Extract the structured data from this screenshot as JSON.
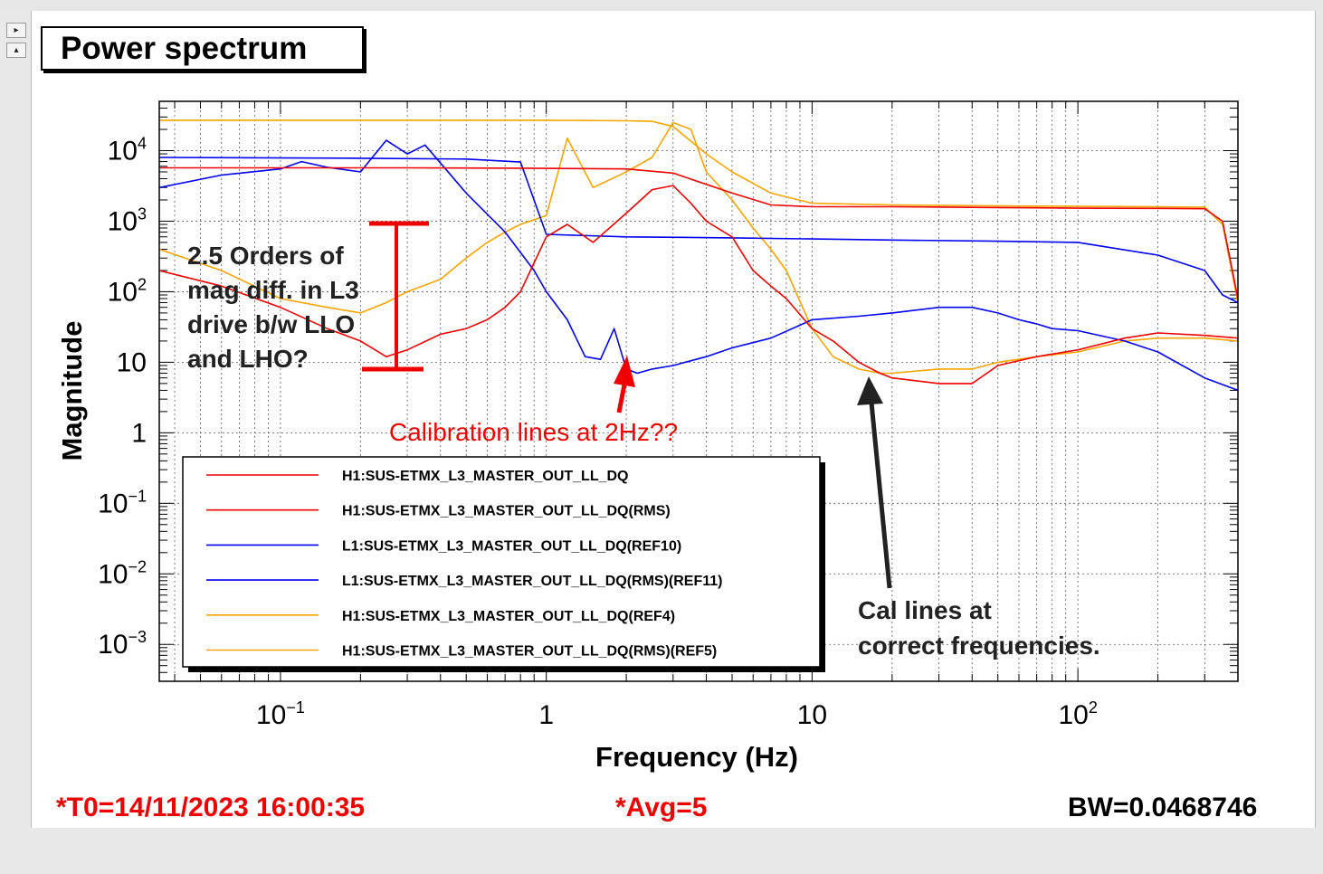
{
  "window": {
    "title": "Power spectrum",
    "nav_buttons": [
      "▸",
      "▴"
    ]
  },
  "footer": {
    "t0": "*T0=14/11/2023 16:00:35",
    "avg": "*Avg=5",
    "bw": "BW=0.0468746"
  },
  "colors": {
    "red": "#ee0000",
    "blue": "#0000ee",
    "orange": "#f5a500",
    "annotation_red": "#ee0000",
    "annotation_dark": "#222222"
  },
  "chart_data": {
    "type": "line",
    "xlabel": "Frequency (Hz)",
    "ylabel": "Magnitude",
    "x_scale": "log",
    "y_scale": "log",
    "xlim": [
      0.035,
      400
    ],
    "ylim": [
      0.0003,
      50000
    ],
    "grid": true,
    "legend_position": "bottom-left",
    "x_ticks": [
      {
        "value": 0.1,
        "base": "10",
        "exp": "−1"
      },
      {
        "value": 1,
        "base": "1",
        "exp": ""
      },
      {
        "value": 10,
        "base": "10",
        "exp": ""
      },
      {
        "value": 100,
        "base": "10",
        "exp": "2"
      }
    ],
    "y_ticks": [
      {
        "value": 10000,
        "base": "10",
        "exp": "4"
      },
      {
        "value": 1000,
        "base": "10",
        "exp": "3"
      },
      {
        "value": 100,
        "base": "10",
        "exp": "2"
      },
      {
        "value": 10,
        "base": "10",
        "exp": ""
      },
      {
        "value": 1,
        "base": "1",
        "exp": ""
      },
      {
        "value": 0.1,
        "base": "10",
        "exp": "−1"
      },
      {
        "value": 0.01,
        "base": "10",
        "exp": "−2"
      },
      {
        "value": 0.001,
        "base": "10",
        "exp": "−3"
      }
    ],
    "series": [
      {
        "name": "H1:SUS-ETMX_L3_MASTER_OUT_LL_DQ",
        "color": "red",
        "x": [
          0.035,
          0.06,
          0.1,
          0.15,
          0.2,
          0.25,
          0.3,
          0.4,
          0.5,
          0.6,
          0.7,
          0.8,
          1.0,
          1.2,
          1.5,
          2.0,
          2.5,
          3.0,
          3.5,
          4.0,
          5.0,
          6.0,
          7.0,
          8.0,
          10,
          12,
          15,
          18,
          20,
          30,
          40,
          50,
          70,
          100,
          150,
          200,
          300,
          400
        ],
        "y": [
          200,
          120,
          60,
          30,
          20,
          12,
          15,
          25,
          30,
          40,
          60,
          100,
          600,
          900,
          500,
          1300,
          2800,
          3200,
          1800,
          1000,
          600,
          200,
          120,
          80,
          30,
          20,
          10,
          7,
          6,
          5,
          5,
          9,
          12,
          15,
          22,
          26,
          24,
          22
        ]
      },
      {
        "name": "H1:SUS-ETMX_L3_MASTER_OUT_LL_DQ(RMS)",
        "color": "red",
        "x": [
          0.035,
          0.3,
          1.0,
          2.0,
          3.0,
          5.0,
          7.0,
          10,
          20,
          50,
          100,
          200,
          300,
          350,
          400
        ],
        "y": [
          5700,
          5700,
          5600,
          5500,
          4800,
          2500,
          1700,
          1600,
          1600,
          1560,
          1530,
          1520,
          1500,
          1000,
          80
        ]
      },
      {
        "name": "L1:SUS-ETMX_L3_MASTER_OUT_LL_DQ(REF10)",
        "color": "blue",
        "x": [
          0.035,
          0.06,
          0.1,
          0.12,
          0.15,
          0.2,
          0.25,
          0.3,
          0.35,
          0.5,
          0.7,
          0.9,
          1.0,
          1.2,
          1.4,
          1.6,
          1.8,
          2.0,
          2.2,
          2.5,
          3.0,
          4.0,
          5.0,
          7.0,
          10,
          15,
          20,
          30,
          40,
          50,
          60,
          70,
          80,
          100,
          150,
          200,
          300,
          400
        ],
        "y": [
          3000,
          4500,
          5500,
          7000,
          5800,
          5000,
          14000,
          9000,
          12000,
          2500,
          700,
          200,
          100,
          40,
          12,
          11,
          30,
          8,
          7,
          8,
          9,
          12,
          16,
          22,
          40,
          45,
          50,
          60,
          60,
          50,
          40,
          35,
          30,
          28,
          20,
          14,
          6,
          4
        ]
      },
      {
        "name": "L1:SUS-ETMX_L3_MASTER_OUT_LL_DQ(RMS)(REF11)",
        "color": "blue",
        "x": [
          0.035,
          0.2,
          0.5,
          0.8,
          1.0,
          2.0,
          5.0,
          10,
          20,
          50,
          100,
          200,
          300,
          350,
          400
        ],
        "y": [
          8000,
          7800,
          7600,
          6900,
          650,
          600,
          580,
          560,
          540,
          520,
          500,
          330,
          200,
          90,
          70
        ]
      },
      {
        "name": "H1:SUS-ETMX_L3_MASTER_OUT_LL_DQ(REF4)",
        "color": "orange",
        "x": [
          0.035,
          0.06,
          0.1,
          0.15,
          0.2,
          0.25,
          0.3,
          0.4,
          0.5,
          0.6,
          0.7,
          0.8,
          1.0,
          1.2,
          1.5,
          2.0,
          2.5,
          3.0,
          3.5,
          4.0,
          5.0,
          6.0,
          7.0,
          8.0,
          10,
          12,
          15,
          18,
          20,
          30,
          40,
          50,
          70,
          100,
          150,
          200,
          300,
          400
        ],
        "y": [
          400,
          200,
          80,
          60,
          50,
          70,
          100,
          150,
          300,
          500,
          700,
          900,
          1200,
          15000,
          3000,
          5000,
          8000,
          25000,
          20000,
          5000,
          2000,
          800,
          400,
          200,
          30,
          12,
          8,
          7,
          7,
          8,
          8,
          10,
          12,
          14,
          20,
          22,
          22,
          20
        ]
      },
      {
        "name": "H1:SUS-ETMX_L3_MASTER_OUT_LL_DQ(RMS)(REF5)",
        "color": "orange",
        "x": [
          0.035,
          0.5,
          1.0,
          2.0,
          2.5,
          3.0,
          4.0,
          5.0,
          7.0,
          10,
          20,
          50,
          100,
          200,
          300,
          350,
          400
        ],
        "y": [
          27000,
          27000,
          27000,
          26500,
          26000,
          22000,
          9000,
          5000,
          2500,
          1800,
          1700,
          1650,
          1620,
          1600,
          1580,
          900,
          70
        ]
      }
    ],
    "annotations": [
      {
        "text_lines": [
          "2.5 Orders of",
          "mag diff. in L3",
          "drive b/w LLO",
          "and LHO?"
        ],
        "color": "dark"
      },
      {
        "text": "Calibration lines at 2Hz??",
        "color": "red"
      },
      {
        "text_lines": [
          "Cal lines at",
          "correct frequencies."
        ],
        "color": "dark"
      }
    ]
  }
}
